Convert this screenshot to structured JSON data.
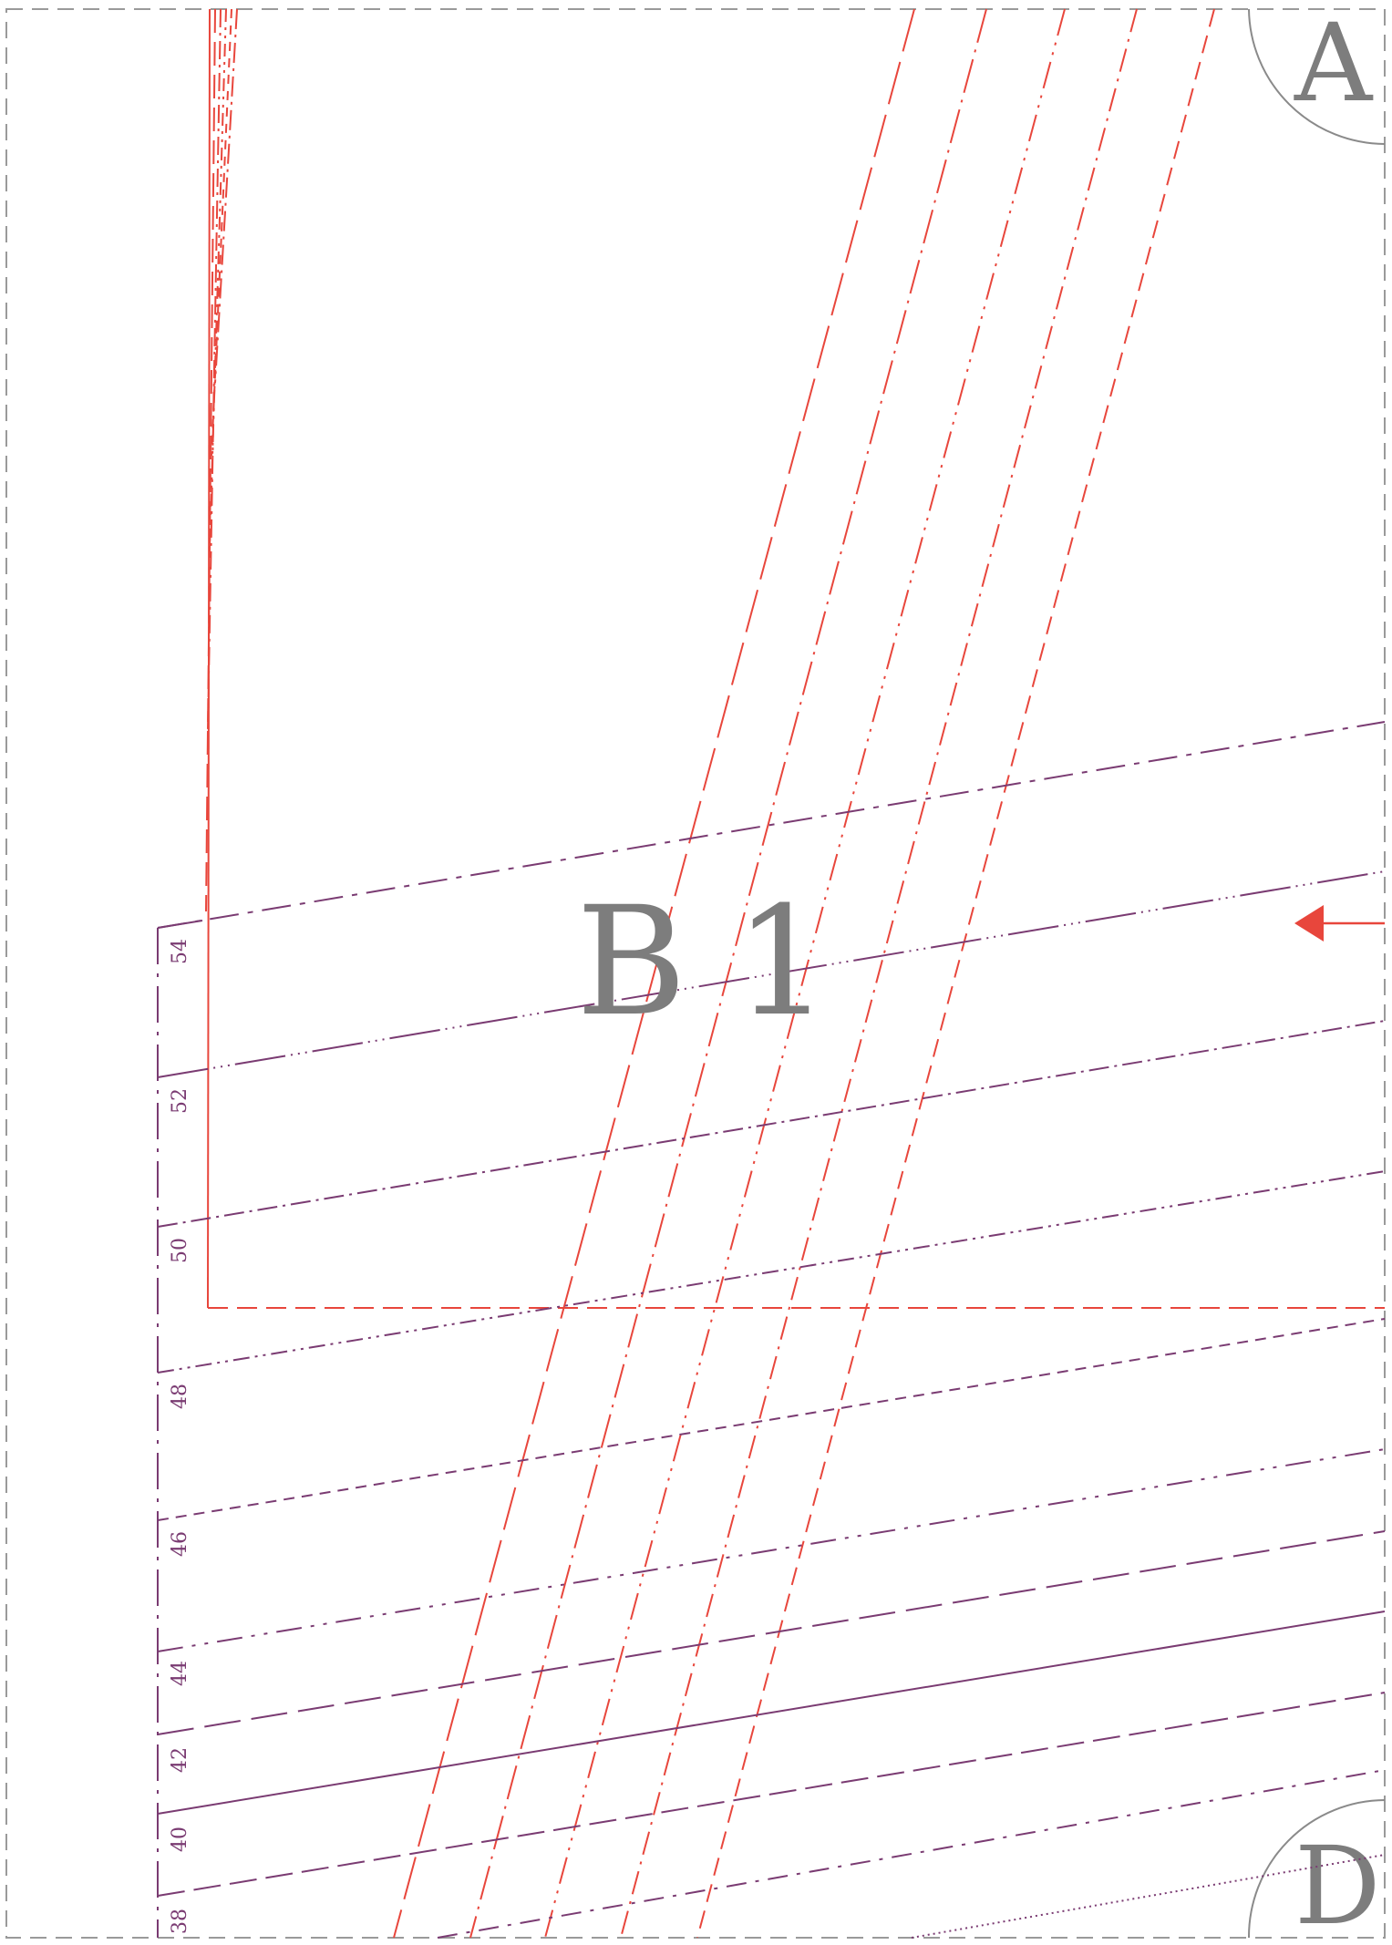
{
  "sheet": {
    "corner_top_right": "A",
    "corner_bottom_right": "D",
    "piece_label": "B 1"
  },
  "size_labels": [
    "54",
    "52",
    "50",
    "48",
    "46",
    "44",
    "42",
    "40",
    "38"
  ],
  "colors": {
    "frame": "#9a9a9a",
    "red_lines": "#e8463c",
    "purple_lines": "#7a3b72",
    "gray_text": "#7d7d7d"
  },
  "icons": {
    "grain_arrow": "left-arrow-marker"
  }
}
